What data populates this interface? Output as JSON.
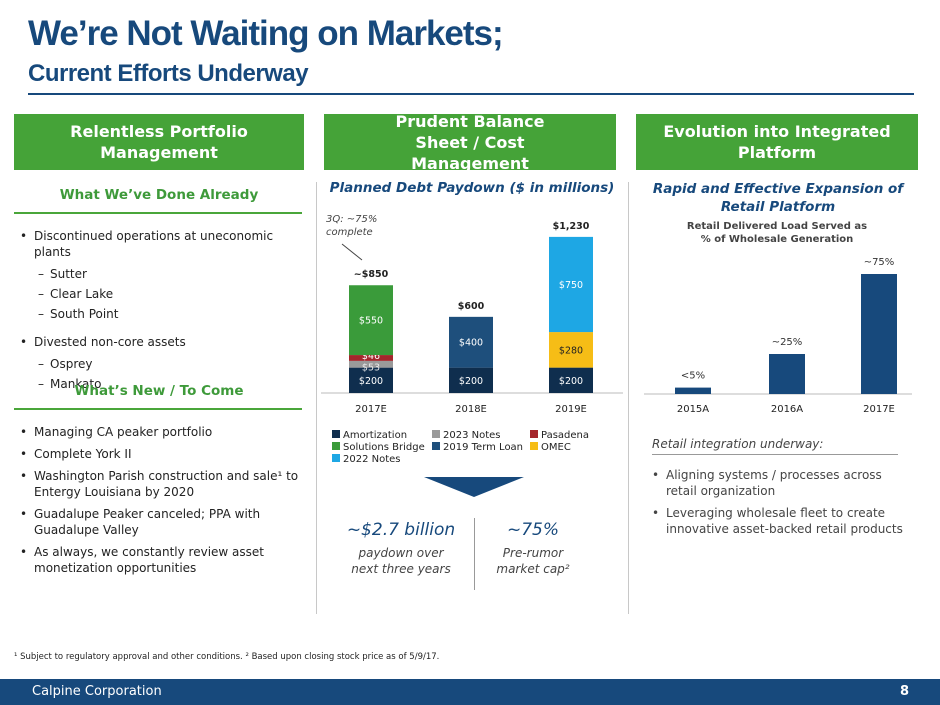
{
  "title": {
    "line1": "We’re Not Waiting on Markets;",
    "line2": "Current Efforts Underway"
  },
  "columns": {
    "left": {
      "header": "Relentless Portfolio Management",
      "done_heading": "What We’ve Done Already",
      "done_items": [
        {
          "level": 1,
          "text": "Discontinued operations at uneconomic plants"
        },
        {
          "level": 2,
          "text": "Sutter"
        },
        {
          "level": 2,
          "text": "Clear Lake"
        },
        {
          "level": 2,
          "text": "South Point"
        },
        {
          "level": 1,
          "text": "Divested non-core assets"
        },
        {
          "level": 2,
          "text": "Osprey"
        },
        {
          "level": 2,
          "text": "Mankato"
        }
      ],
      "new_heading": "What’s New / To Come",
      "new_items": [
        "Managing CA peaker portfolio",
        "Complete York II",
        "Washington Parish construction and sale¹ to Entergy Louisiana by 2020",
        "Guadalupe Peaker canceled; PPA with Guadalupe Valley",
        "As always, we constantly review asset monetization opportunities"
      ]
    },
    "middle": {
      "header": "Prudent Balance Sheet / Cost Management",
      "chart_title": "Planned Debt Paydown ($ in millions)",
      "annotation": "3Q: ~75% complete",
      "summary_left": {
        "value": "~$2.7 billion",
        "line1": "paydown over",
        "line2": "next three years"
      },
      "summary_right": {
        "value": "~75%",
        "line1": "Pre-rumor",
        "line2": "market cap²"
      }
    },
    "right": {
      "header": "Evolution into Integrated Platform",
      "chart_heading": "Rapid and Effective Expansion of Retail Platform",
      "chart_title_line1": "Retail Delivered Load Served as",
      "chart_title_line2": "% of Wholesale Generation",
      "integration_heading": "Retail integration underway:",
      "integration_items": [
        "Aligning systems / processes across retail organization",
        "Leveraging wholesale fleet to create innovative asset-backed retail products"
      ]
    }
  },
  "chart_data": [
    {
      "type": "bar",
      "stacked": true,
      "title": "Planned Debt Paydown ($ in millions)",
      "categories": [
        "2017E",
        "2018E",
        "2019E"
      ],
      "totals": [
        "~$850",
        "$600",
        "$1,230"
      ],
      "ylim": [
        0,
        1300
      ],
      "series": [
        {
          "name": "Amortization",
          "color": "#0f2e4e",
          "values": [
            200,
            200,
            200
          ],
          "labels": [
            "$200",
            "$200",
            "$200"
          ]
        },
        {
          "name": "2023 Notes",
          "color": "#9a9a9a",
          "values": [
            53,
            0,
            0
          ],
          "labels": [
            "$53",
            "",
            ""
          ]
        },
        {
          "name": "Pasadena",
          "color": "#a4262c",
          "values": [
            46,
            0,
            0
          ],
          "labels": [
            "$46",
            "",
            ""
          ]
        },
        {
          "name": "Solutions Bridge",
          "color": "#3a9b3a",
          "values": [
            550,
            0,
            0
          ],
          "labels": [
            "$550",
            "",
            ""
          ]
        },
        {
          "name": "2019 Term Loan",
          "color": "#1e4f7c",
          "values": [
            0,
            400,
            0
          ],
          "labels": [
            "",
            "$400",
            ""
          ]
        },
        {
          "name": "OMEC",
          "color": "#f6bd16",
          "values": [
            0,
            0,
            280
          ],
          "labels": [
            "",
            "",
            "$280"
          ]
        },
        {
          "name": "2022 Notes",
          "color": "#1ea7e4",
          "values": [
            0,
            0,
            750
          ],
          "labels": [
            "",
            "",
            "$750"
          ]
        }
      ],
      "legend": [
        "Amortization",
        "2023 Notes",
        "Pasadena",
        "Solutions Bridge",
        "2019 Term Loan",
        "OMEC",
        "2022 Notes"
      ]
    },
    {
      "type": "bar",
      "title": "Retail Delivered Load Served as % of Wholesale Generation",
      "categories": [
        "2015A",
        "2016A",
        "2017E"
      ],
      "values": [
        4,
        25,
        75
      ],
      "labels": [
        "<5%",
        "~25%",
        "~75%"
      ],
      "ylim": [
        0,
        80
      ],
      "color": "#17497c"
    }
  ],
  "footnote": "¹ Subject to regulatory approval and other conditions. ² Based upon closing stock price as of 5/9/17.",
  "footer": {
    "company": "Calpine Corporation",
    "page": "8"
  }
}
